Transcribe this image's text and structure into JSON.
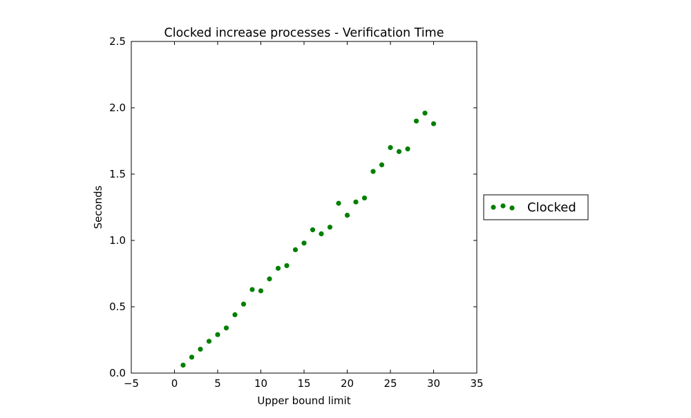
{
  "chart_data": {
    "type": "scatter",
    "title": "Clocked increase processes - Verification Time",
    "xlabel": "Upper bound limit",
    "ylabel": "Seconds",
    "xlim": [
      -5,
      35
    ],
    "ylim": [
      0.0,
      2.5
    ],
    "xticks": [
      -5,
      0,
      5,
      10,
      15,
      20,
      25,
      30,
      35
    ],
    "xtick_labels": [
      "−5",
      "0",
      "5",
      "10",
      "15",
      "20",
      "25",
      "30",
      "35"
    ],
    "yticks": [
      0.0,
      0.5,
      1.0,
      1.5,
      2.0,
      2.5
    ],
    "ytick_labels": [
      "0.0",
      "0.5",
      "1.0",
      "1.5",
      "2.0",
      "2.5"
    ],
    "grid": false,
    "legend_position": "outside-right",
    "series": [
      {
        "name": "Clocked",
        "color": "#008000",
        "marker": "circle",
        "x": [
          1,
          2,
          3,
          4,
          5,
          6,
          7,
          8,
          9,
          10,
          11,
          12,
          13,
          14,
          15,
          16,
          17,
          18,
          19,
          20,
          21,
          22,
          23,
          24,
          25,
          26,
          27,
          28,
          29,
          30
        ],
        "y": [
          0.06,
          0.12,
          0.18,
          0.24,
          0.29,
          0.34,
          0.44,
          0.52,
          0.63,
          0.62,
          0.71,
          0.79,
          0.81,
          0.93,
          0.98,
          1.08,
          1.05,
          1.1,
          1.28,
          1.19,
          1.29,
          1.32,
          1.52,
          1.57,
          1.7,
          1.67,
          1.69,
          1.9,
          1.96,
          1.88
        ]
      }
    ]
  }
}
